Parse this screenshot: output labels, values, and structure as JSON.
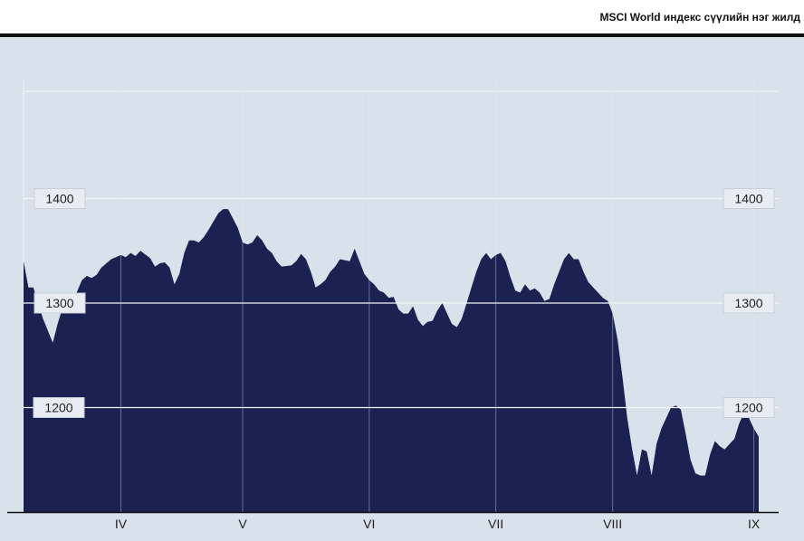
{
  "header": {
    "title": "MSCI World индекс сүүлийн нэг жилд"
  },
  "chart_data": {
    "type": "area",
    "title": "MSCI World индекс сүүлийн нэг жилд",
    "xlabel": "",
    "ylabel": "",
    "ylim": [
      1100,
      1500
    ],
    "y_ticks": [
      1200,
      1300,
      1400
    ],
    "y_tick_labels": [
      "1200",
      "1300",
      "1400"
    ],
    "x_ticks": [
      {
        "label": "IV",
        "pos": 20
      },
      {
        "label": "V",
        "pos": 45
      },
      {
        "label": "VI",
        "pos": 71
      },
      {
        "label": "VII",
        "pos": 97
      },
      {
        "label": "VIII",
        "pos": 121
      },
      {
        "label": "IX",
        "pos": 150
      }
    ],
    "xlim": [
      0,
      151
    ],
    "grid": true,
    "colors": {
      "fill": "#1b2150",
      "background": "#d9e1ea",
      "grid": "#f2f5f8"
    },
    "x": [
      0,
      1,
      2,
      4,
      6,
      7,
      8,
      10,
      12,
      13,
      14,
      15,
      16,
      18,
      20,
      21,
      22,
      23,
      24,
      26,
      27,
      28,
      29,
      30,
      31,
      32,
      33,
      34,
      35,
      36,
      37,
      38,
      39,
      40,
      41,
      42,
      44,
      45,
      46,
      47,
      48,
      49,
      50,
      51,
      52,
      53,
      55,
      56,
      57,
      58,
      59,
      60,
      61,
      62,
      63,
      64,
      65,
      67,
      68,
      69,
      70,
      71,
      72,
      73,
      74,
      75,
      76,
      77,
      78,
      79,
      80,
      81,
      82,
      83,
      84,
      85,
      86,
      87,
      88,
      89,
      90,
      91,
      92,
      93,
      94,
      95,
      96,
      97,
      98,
      99,
      100,
      101,
      102,
      103,
      104,
      105,
      106,
      107,
      108,
      109,
      110,
      111,
      112,
      113,
      114,
      115,
      116,
      117,
      118,
      119,
      120,
      121,
      122,
      123,
      124,
      125,
      126,
      127,
      128,
      129,
      130,
      131,
      132,
      133,
      134,
      135,
      136,
      137,
      138,
      139,
      140,
      141,
      142,
      143,
      144,
      145,
      146,
      147,
      148,
      149,
      150,
      151
    ],
    "y": [
      1340,
      1315,
      1315,
      1285,
      1262,
      1280,
      1295,
      1300,
      1322,
      1326,
      1324,
      1327,
      1334,
      1342,
      1346,
      1344,
      1348,
      1345,
      1350,
      1343,
      1335,
      1338,
      1339,
      1334,
      1318,
      1328,
      1348,
      1360,
      1360,
      1358,
      1363,
      1370,
      1378,
      1386,
      1390,
      1390,
      1372,
      1358,
      1356,
      1358,
      1365,
      1360,
      1352,
      1348,
      1340,
      1335,
      1336,
      1340,
      1347,
      1342,
      1330,
      1315,
      1318,
      1322,
      1330,
      1335,
      1342,
      1340,
      1352,
      1340,
      1328,
      1322,
      1318,
      1312,
      1310,
      1305,
      1306,
      1294,
      1290,
      1290,
      1297,
      1284,
      1278,
      1282,
      1283,
      1293,
      1300,
      1290,
      1280,
      1277,
      1285,
      1300,
      1315,
      1330,
      1342,
      1348,
      1342,
      1346,
      1348,
      1340,
      1325,
      1312,
      1310,
      1318,
      1312,
      1314,
      1310,
      1302,
      1304,
      1318,
      1330,
      1342,
      1348,
      1342,
      1342,
      1330,
      1320,
      1315,
      1310,
      1305,
      1302,
      1290,
      1265,
      1230,
      1190,
      1160,
      1135,
      1160,
      1158,
      1135,
      1165,
      1180,
      1190,
      1200,
      1202,
      1198,
      1175,
      1150,
      1137,
      1135,
      1135,
      1155,
      1168,
      1163,
      1160,
      1165,
      1170,
      1185,
      1195,
      1190,
      1180,
      1172
    ]
  }
}
